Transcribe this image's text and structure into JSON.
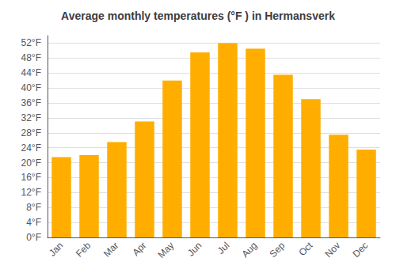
{
  "chart_data": {
    "type": "bar",
    "title": "Average monthly temperatures (°F ) in Hermansverk",
    "categories": [
      "Jan",
      "Feb",
      "Mar",
      "Apr",
      "May",
      "Jun",
      "Jul",
      "Aug",
      "Sep",
      "Oct",
      "Nov",
      "Dec"
    ],
    "values": [
      21.5,
      22.0,
      25.5,
      31.0,
      42.0,
      49.5,
      52.0,
      50.5,
      43.5,
      37.0,
      27.5,
      23.5
    ],
    "color": "#FFAE00",
    "ylim": [
      0,
      54
    ],
    "yticks": [
      {
        "value": 0,
        "label": "0°F"
      },
      {
        "value": 4,
        "label": "4°F"
      },
      {
        "value": 8,
        "label": "8°F"
      },
      {
        "value": 12,
        "label": "12°F"
      },
      {
        "value": 16,
        "label": "16°F"
      },
      {
        "value": 20,
        "label": "20°F"
      },
      {
        "value": 24,
        "label": "24°F"
      },
      {
        "value": 28,
        "label": "28°F"
      },
      {
        "value": 32,
        "label": "32°F"
      },
      {
        "value": 36,
        "label": "36°F"
      },
      {
        "value": 40,
        "label": "40°F"
      },
      {
        "value": 44,
        "label": "44°F"
      },
      {
        "value": 48,
        "label": "48°F"
      },
      {
        "value": 52,
        "label": "52°F"
      }
    ],
    "grid": true
  }
}
